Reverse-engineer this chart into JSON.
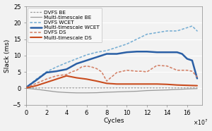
{
  "title": "",
  "xlabel": "Cycles",
  "ylabel": "Slack (ms)",
  "xlim": [
    0,
    175000000.0
  ],
  "ylim": [
    -5,
    25
  ],
  "yticks": [
    -5,
    0,
    5,
    10,
    15,
    20,
    25
  ],
  "xticks": [
    0,
    20000000.0,
    40000000.0,
    60000000.0,
    80000000.0,
    100000000.0,
    120000000.0,
    140000000.0,
    160000000.0
  ],
  "xtick_labels": [
    "0",
    "2",
    "4",
    "6",
    "8",
    "10",
    "12",
    "14",
    "16"
  ],
  "xtick_scale_label": "×10⁷",
  "background_color": "#f2f2f2",
  "plot_bg_color": "#f2f2f2",
  "grid_color": "#ffffff",
  "series": {
    "DVFS BE": {
      "color": "#999999",
      "linestyle": "dotted",
      "linewidth": 0.9,
      "x": [
        0,
        500000.0,
        1000000.0,
        2000000.0,
        3000000.0,
        5000000.0,
        8000000.0,
        12000000.0,
        16000000.0,
        20000000.0,
        25000000.0,
        30000000.0,
        35000000.0,
        40000000.0,
        45000000.0,
        50000000.0,
        55000000.0,
        60000000.0,
        65000000.0,
        70000000.0,
        75000000.0,
        80000000.0,
        85000000.0,
        90000000.0,
        95000000.0,
        100000000.0,
        105000000.0,
        110000000.0,
        115000000.0,
        120000000.0,
        125000000.0,
        130000000.0,
        135000000.0,
        140000000.0,
        145000000.0,
        150000000.0,
        155000000.0,
        160000000.0,
        165000000.0,
        170000000.0
      ],
      "y": [
        0.0,
        0.05,
        0.08,
        0.1,
        0.12,
        0.1,
        0.1,
        0.1,
        0.1,
        0.1,
        0.1,
        0.1,
        0.1,
        0.1,
        0.12,
        0.1,
        0.12,
        0.12,
        0.1,
        0.12,
        0.1,
        0.12,
        0.1,
        0.12,
        0.12,
        0.1,
        0.12,
        0.12,
        0.1,
        0.12,
        0.12,
        0.1,
        0.12,
        0.12,
        0.1,
        0.12,
        0.12,
        0.12,
        0.12,
        0.12
      ]
    },
    "Multi-timescale BE": {
      "color": "#999999",
      "linestyle": "solid",
      "linewidth": 0.9,
      "x": [
        0,
        10000000.0,
        20000000.0,
        30000000.0,
        40000000.0,
        50000000.0,
        60000000.0,
        70000000.0,
        80000000.0,
        90000000.0,
        100000000.0,
        110000000.0,
        120000000.0,
        130000000.0,
        140000000.0,
        150000000.0,
        160000000.0,
        170000000.0
      ],
      "y": [
        0.0,
        -0.3,
        -0.7,
        -1.1,
        -1.3,
        -1.4,
        -1.4,
        -1.35,
        -1.2,
        -1.1,
        -1.0,
        -0.9,
        -0.7,
        -0.6,
        -0.5,
        -0.35,
        -0.2,
        -0.1
      ]
    },
    "DVFS WCET": {
      "color": "#7ab0d4",
      "linestyle": "dotted",
      "linewidth": 1.2,
      "x": [
        0,
        10000000.0,
        20000000.0,
        30000000.0,
        40000000.0,
        50000000.0,
        60000000.0,
        70000000.0,
        80000000.0,
        90000000.0,
        100000000.0,
        110000000.0,
        120000000.0,
        130000000.0,
        140000000.0,
        150000000.0,
        160000000.0,
        165000000.0,
        170000000.0
      ],
      "y": [
        0.3,
        2.8,
        5.0,
        6.5,
        7.8,
        9.0,
        10.2,
        11.0,
        11.5,
        12.5,
        13.5,
        15.0,
        16.5,
        17.0,
        17.5,
        17.5,
        18.5,
        19.0,
        17.5
      ]
    },
    "Multi-timescale WCET": {
      "color": "#2a5fa5",
      "linestyle": "solid",
      "linewidth": 1.8,
      "x": [
        0,
        10000000.0,
        20000000.0,
        30000000.0,
        40000000.0,
        50000000.0,
        60000000.0,
        70000000.0,
        80000000.0,
        90000000.0,
        100000000.0,
        110000000.0,
        120000000.0,
        130000000.0,
        140000000.0,
        150000000.0,
        155000000.0,
        160000000.0,
        165000000.0,
        170000000.0
      ],
      "y": [
        0.3,
        2.5,
        4.8,
        5.2,
        5.8,
        7.5,
        8.5,
        9.5,
        10.5,
        10.5,
        11.0,
        11.2,
        11.2,
        11.0,
        11.0,
        11.0,
        10.5,
        9.0,
        8.5,
        3.0
      ]
    },
    "DVFS DS": {
      "color": "#d4836a",
      "linestyle": "dotted",
      "linewidth": 1.2,
      "x": [
        0,
        10000000.0,
        20000000.0,
        30000000.0,
        40000000.0,
        45000000.0,
        50000000.0,
        55000000.0,
        60000000.0,
        65000000.0,
        70000000.0,
        75000000.0,
        80000000.0,
        90000000.0,
        100000000.0,
        110000000.0,
        115000000.0,
        120000000.0,
        130000000.0,
        140000000.0,
        150000000.0,
        160000000.0,
        165000000.0,
        170000000.0
      ],
      "y": [
        0.2,
        1.5,
        2.8,
        3.8,
        4.2,
        5.0,
        5.5,
        6.5,
        6.8,
        6.5,
        6.0,
        5.0,
        2.2,
        4.8,
        5.5,
        5.2,
        5.2,
        5.0,
        7.0,
        6.8,
        5.5,
        5.5,
        5.2,
        3.5
      ]
    },
    "Multi-timescale DS": {
      "color": "#c94c1e",
      "linestyle": "solid",
      "linewidth": 1.5,
      "x": [
        0,
        10000000.0,
        20000000.0,
        30000000.0,
        40000000.0,
        50000000.0,
        60000000.0,
        70000000.0,
        80000000.0,
        90000000.0,
        100000000.0,
        110000000.0,
        120000000.0,
        130000000.0,
        140000000.0,
        150000000.0,
        160000000.0,
        165000000.0,
        170000000.0
      ],
      "y": [
        0.1,
        0.8,
        1.8,
        2.8,
        3.8,
        3.2,
        2.8,
        2.2,
        1.5,
        1.3,
        1.3,
        1.3,
        1.3,
        1.3,
        1.2,
        1.0,
        0.9,
        0.85,
        0.8
      ]
    }
  },
  "legend_order": [
    "DVFS BE",
    "Multi-timescale BE",
    "DVFS WCET",
    "Multi-timescale WCET",
    "DVFS DS",
    "Multi-timescale DS"
  ],
  "legend_fontsize": 5.2,
  "axis_label_fontsize": 6.5,
  "tick_fontsize": 6.0
}
